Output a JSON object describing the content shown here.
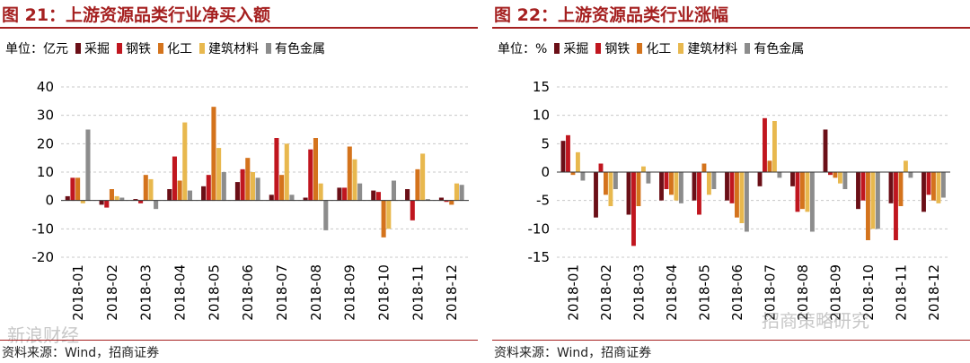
{
  "categories": [
    "2018-01",
    "2018-02",
    "2018-03",
    "2018-04",
    "2018-05",
    "2018-06",
    "2018-07",
    "2018-08",
    "2018-09",
    "2018-10",
    "2018-11",
    "2018-12"
  ],
  "series_names": [
    "采掘",
    "钢铁",
    "化工",
    "建筑材料",
    "有色金属"
  ],
  "series_colors": [
    "#6b0f17",
    "#c0161f",
    "#d4731c",
    "#e8b84e",
    "#8c8c8c"
  ],
  "left": {
    "title": "图 21：上游资源品类行业净买入额",
    "unit": "单位：亿元",
    "source": "资料来源：Wind，招商证券",
    "chart_data": {
      "type": "bar",
      "categories": [
        "2018-01",
        "2018-02",
        "2018-03",
        "2018-04",
        "2018-05",
        "2018-06",
        "2018-07",
        "2018-08",
        "2018-09",
        "2018-10",
        "2018-11",
        "2018-12"
      ],
      "series": [
        {
          "name": "采掘",
          "values": [
            1.5,
            -1.5,
            0.5,
            4,
            5,
            6.5,
            2,
            1,
            4.5,
            3.5,
            4,
            1
          ]
        },
        {
          "name": "钢铁",
          "values": [
            8,
            -2.5,
            -1,
            15.5,
            9,
            11,
            22,
            18,
            4.5,
            3,
            -7,
            -0.5
          ]
        },
        {
          "name": "化工",
          "values": [
            8,
            4,
            9,
            7,
            33,
            15,
            9,
            22,
            19,
            -13,
            11,
            -1.5
          ]
        },
        {
          "name": "建筑材料",
          "values": [
            -1,
            1.5,
            7.5,
            27.5,
            18.5,
            10,
            20,
            6,
            14.5,
            -10,
            16.5,
            6
          ]
        },
        {
          "name": "有色金属",
          "values": [
            25,
            1,
            -3,
            3.5,
            10,
            8,
            2,
            -10.5,
            6,
            7,
            0.5,
            5.5
          ]
        }
      ],
      "ylim": [
        -20,
        40
      ],
      "yticks": [
        -20,
        -10,
        0,
        10,
        20,
        30,
        40
      ]
    }
  },
  "right": {
    "title": "图 22：上游资源品类行业涨幅",
    "unit": "单位：%",
    "source": "资料来源：Wind，招商证券",
    "chart_data": {
      "type": "bar",
      "categories": [
        "2018-01",
        "2018-02",
        "2018-03",
        "2018-04",
        "2018-05",
        "2018-06",
        "2018-07",
        "2018-08",
        "2018-09",
        "2018-10",
        "2018-11",
        "2018-12"
      ],
      "series": [
        {
          "name": "采掘",
          "values": [
            5.5,
            -8,
            -7.5,
            -5,
            -5,
            -5,
            -2.5,
            -2.5,
            7.5,
            -6.5,
            -5.5,
            -7
          ]
        },
        {
          "name": "钢铁",
          "values": [
            6.5,
            1.5,
            -13,
            -3,
            -7.5,
            -5.5,
            9.5,
            -7,
            -0.5,
            -5,
            -12,
            -4
          ]
        },
        {
          "name": "化工",
          "values": [
            -0.5,
            -4,
            -6,
            -4,
            1.5,
            -8,
            2,
            -6.5,
            -1,
            -12,
            -6,
            -5
          ]
        },
        {
          "name": "建筑材料",
          "values": [
            3.5,
            -6,
            1,
            -5,
            -4,
            -9,
            9,
            -7,
            -2,
            -10,
            2,
            -5.5
          ]
        },
        {
          "name": "有色金属",
          "values": [
            -1.5,
            -3,
            -2,
            -5.5,
            -3,
            -10.5,
            -1,
            -10.5,
            -3,
            -10,
            -1,
            -4.5
          ]
        }
      ],
      "ylim": [
        -15,
        15
      ],
      "yticks": [
        -15,
        -10,
        -5,
        0,
        5,
        10,
        15
      ]
    }
  },
  "watermarks": {
    "left": "新浪财经",
    "right": "招商策略研究"
  }
}
